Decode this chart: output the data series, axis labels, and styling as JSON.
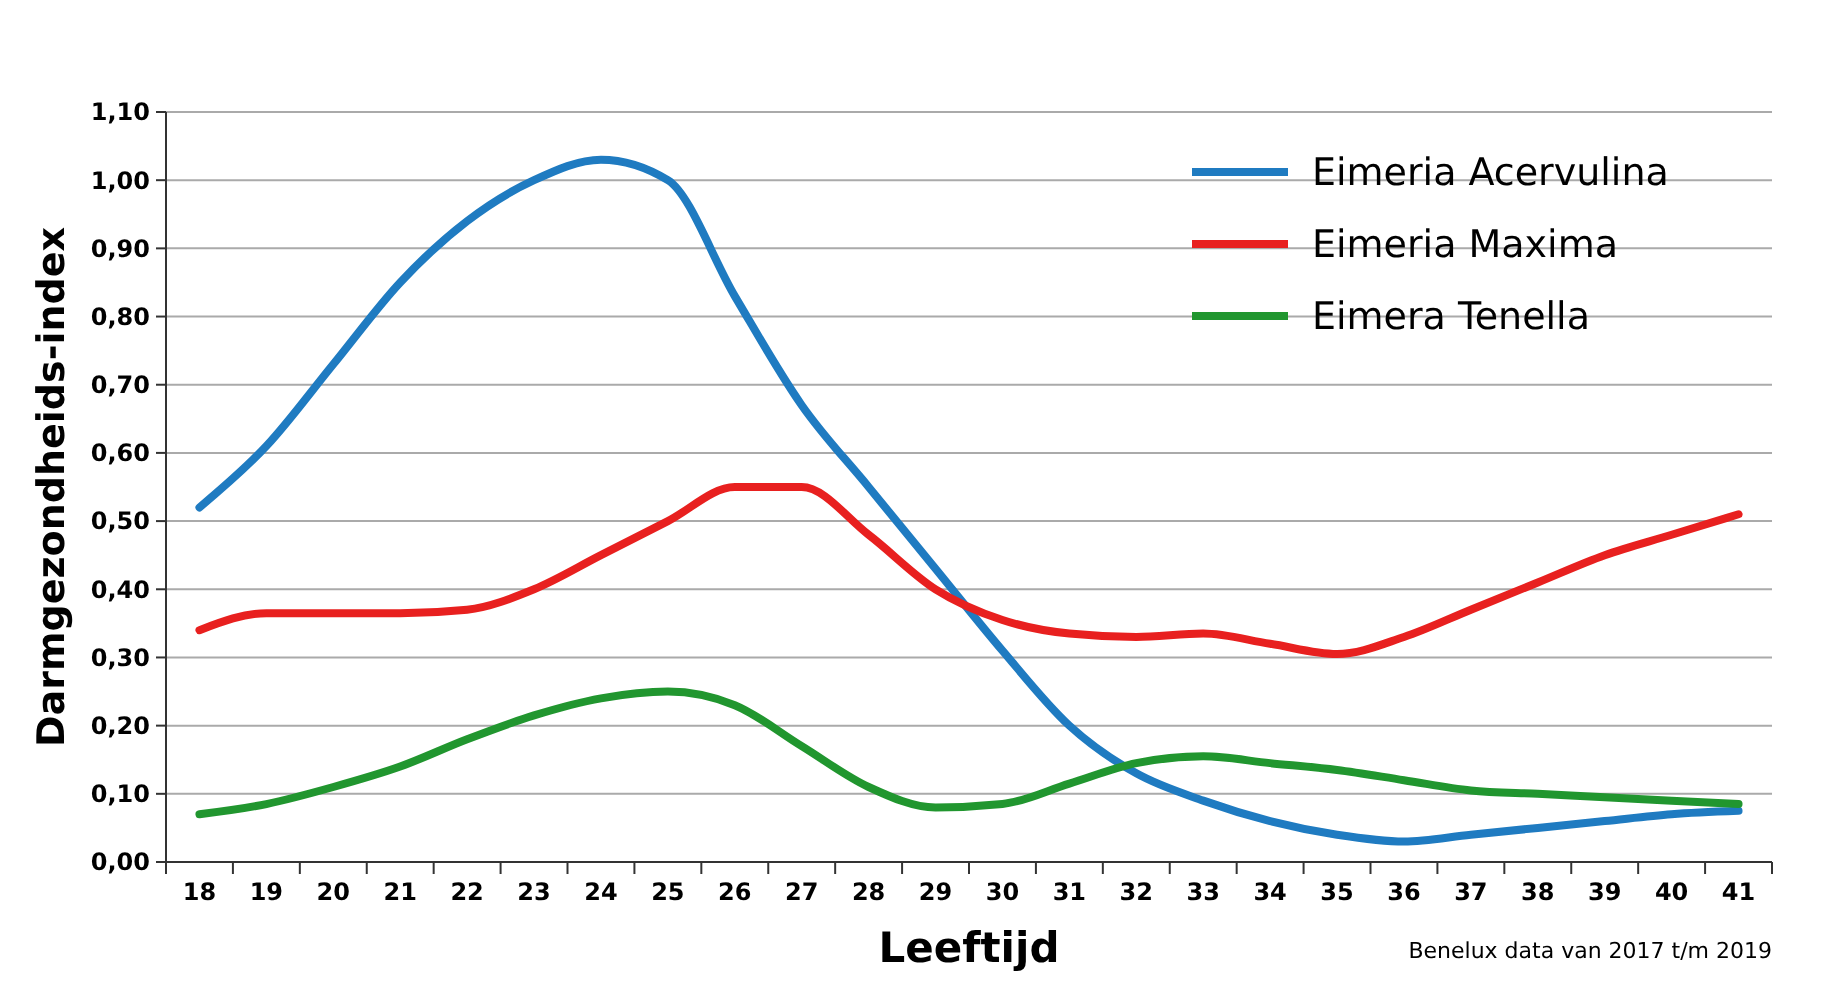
{
  "chart_data": {
    "type": "line",
    "xlabel": "Leeftijd",
    "ylabel": "Darmgezondheids-index",
    "categories": [
      "18",
      "19",
      "20",
      "21",
      "22",
      "23",
      "24",
      "25",
      "26",
      "27",
      "28",
      "29",
      "30",
      "31",
      "32",
      "33",
      "34",
      "35",
      "36",
      "37",
      "38",
      "39",
      "40",
      "41"
    ],
    "series": [
      {
        "name": "Eimeria Acervulina",
        "color": "#1f7bc1",
        "values": [
          0.52,
          0.61,
          0.73,
          0.85,
          0.94,
          1.0,
          1.03,
          1.0,
          0.83,
          0.67,
          0.55,
          0.43,
          0.31,
          0.2,
          0.13,
          0.09,
          0.06,
          0.04,
          0.03,
          0.04,
          0.05,
          0.06,
          0.07,
          0.075
        ]
      },
      {
        "name": "Eimeria Maxima",
        "color": "#e8201f",
        "values": [
          0.34,
          0.365,
          0.365,
          0.365,
          0.37,
          0.4,
          0.45,
          0.5,
          0.55,
          0.55,
          0.48,
          0.4,
          0.355,
          0.335,
          0.33,
          0.335,
          0.32,
          0.305,
          0.33,
          0.37,
          0.41,
          0.45,
          0.48,
          0.51
        ]
      },
      {
        "name": "Eimera Tenella",
        "color": "#21962f",
        "values": [
          0.07,
          0.085,
          0.11,
          0.14,
          0.18,
          0.215,
          0.24,
          0.25,
          0.23,
          0.17,
          0.11,
          0.08,
          0.085,
          0.115,
          0.145,
          0.155,
          0.145,
          0.135,
          0.12,
          0.105,
          0.1,
          0.095,
          0.09,
          0.085
        ]
      }
    ],
    "ylim": [
      0,
      1.1
    ],
    "yticks": [
      {
        "value": 0,
        "label": "0,00"
      },
      {
        "value": 0.1,
        "label": "0,10"
      },
      {
        "value": 0.2,
        "label": "0,20"
      },
      {
        "value": 0.3,
        "label": "0,30"
      },
      {
        "value": 0.4,
        "label": "0,40"
      },
      {
        "value": 0.5,
        "label": "0,50"
      },
      {
        "value": 0.6,
        "label": "0,60"
      },
      {
        "value": 0.7,
        "label": "0,70"
      },
      {
        "value": 0.8,
        "label": "0,80"
      },
      {
        "value": 0.9,
        "label": "0,90"
      },
      {
        "value": 1.0,
        "label": "1,00"
      },
      {
        "value": 1.1,
        "label": "1,10"
      }
    ],
    "grid": "y",
    "legend": "top right",
    "marker": "none",
    "line_style": "solid",
    "annotations": [
      "Benelux data van 2017 t/m 2019"
    ]
  }
}
